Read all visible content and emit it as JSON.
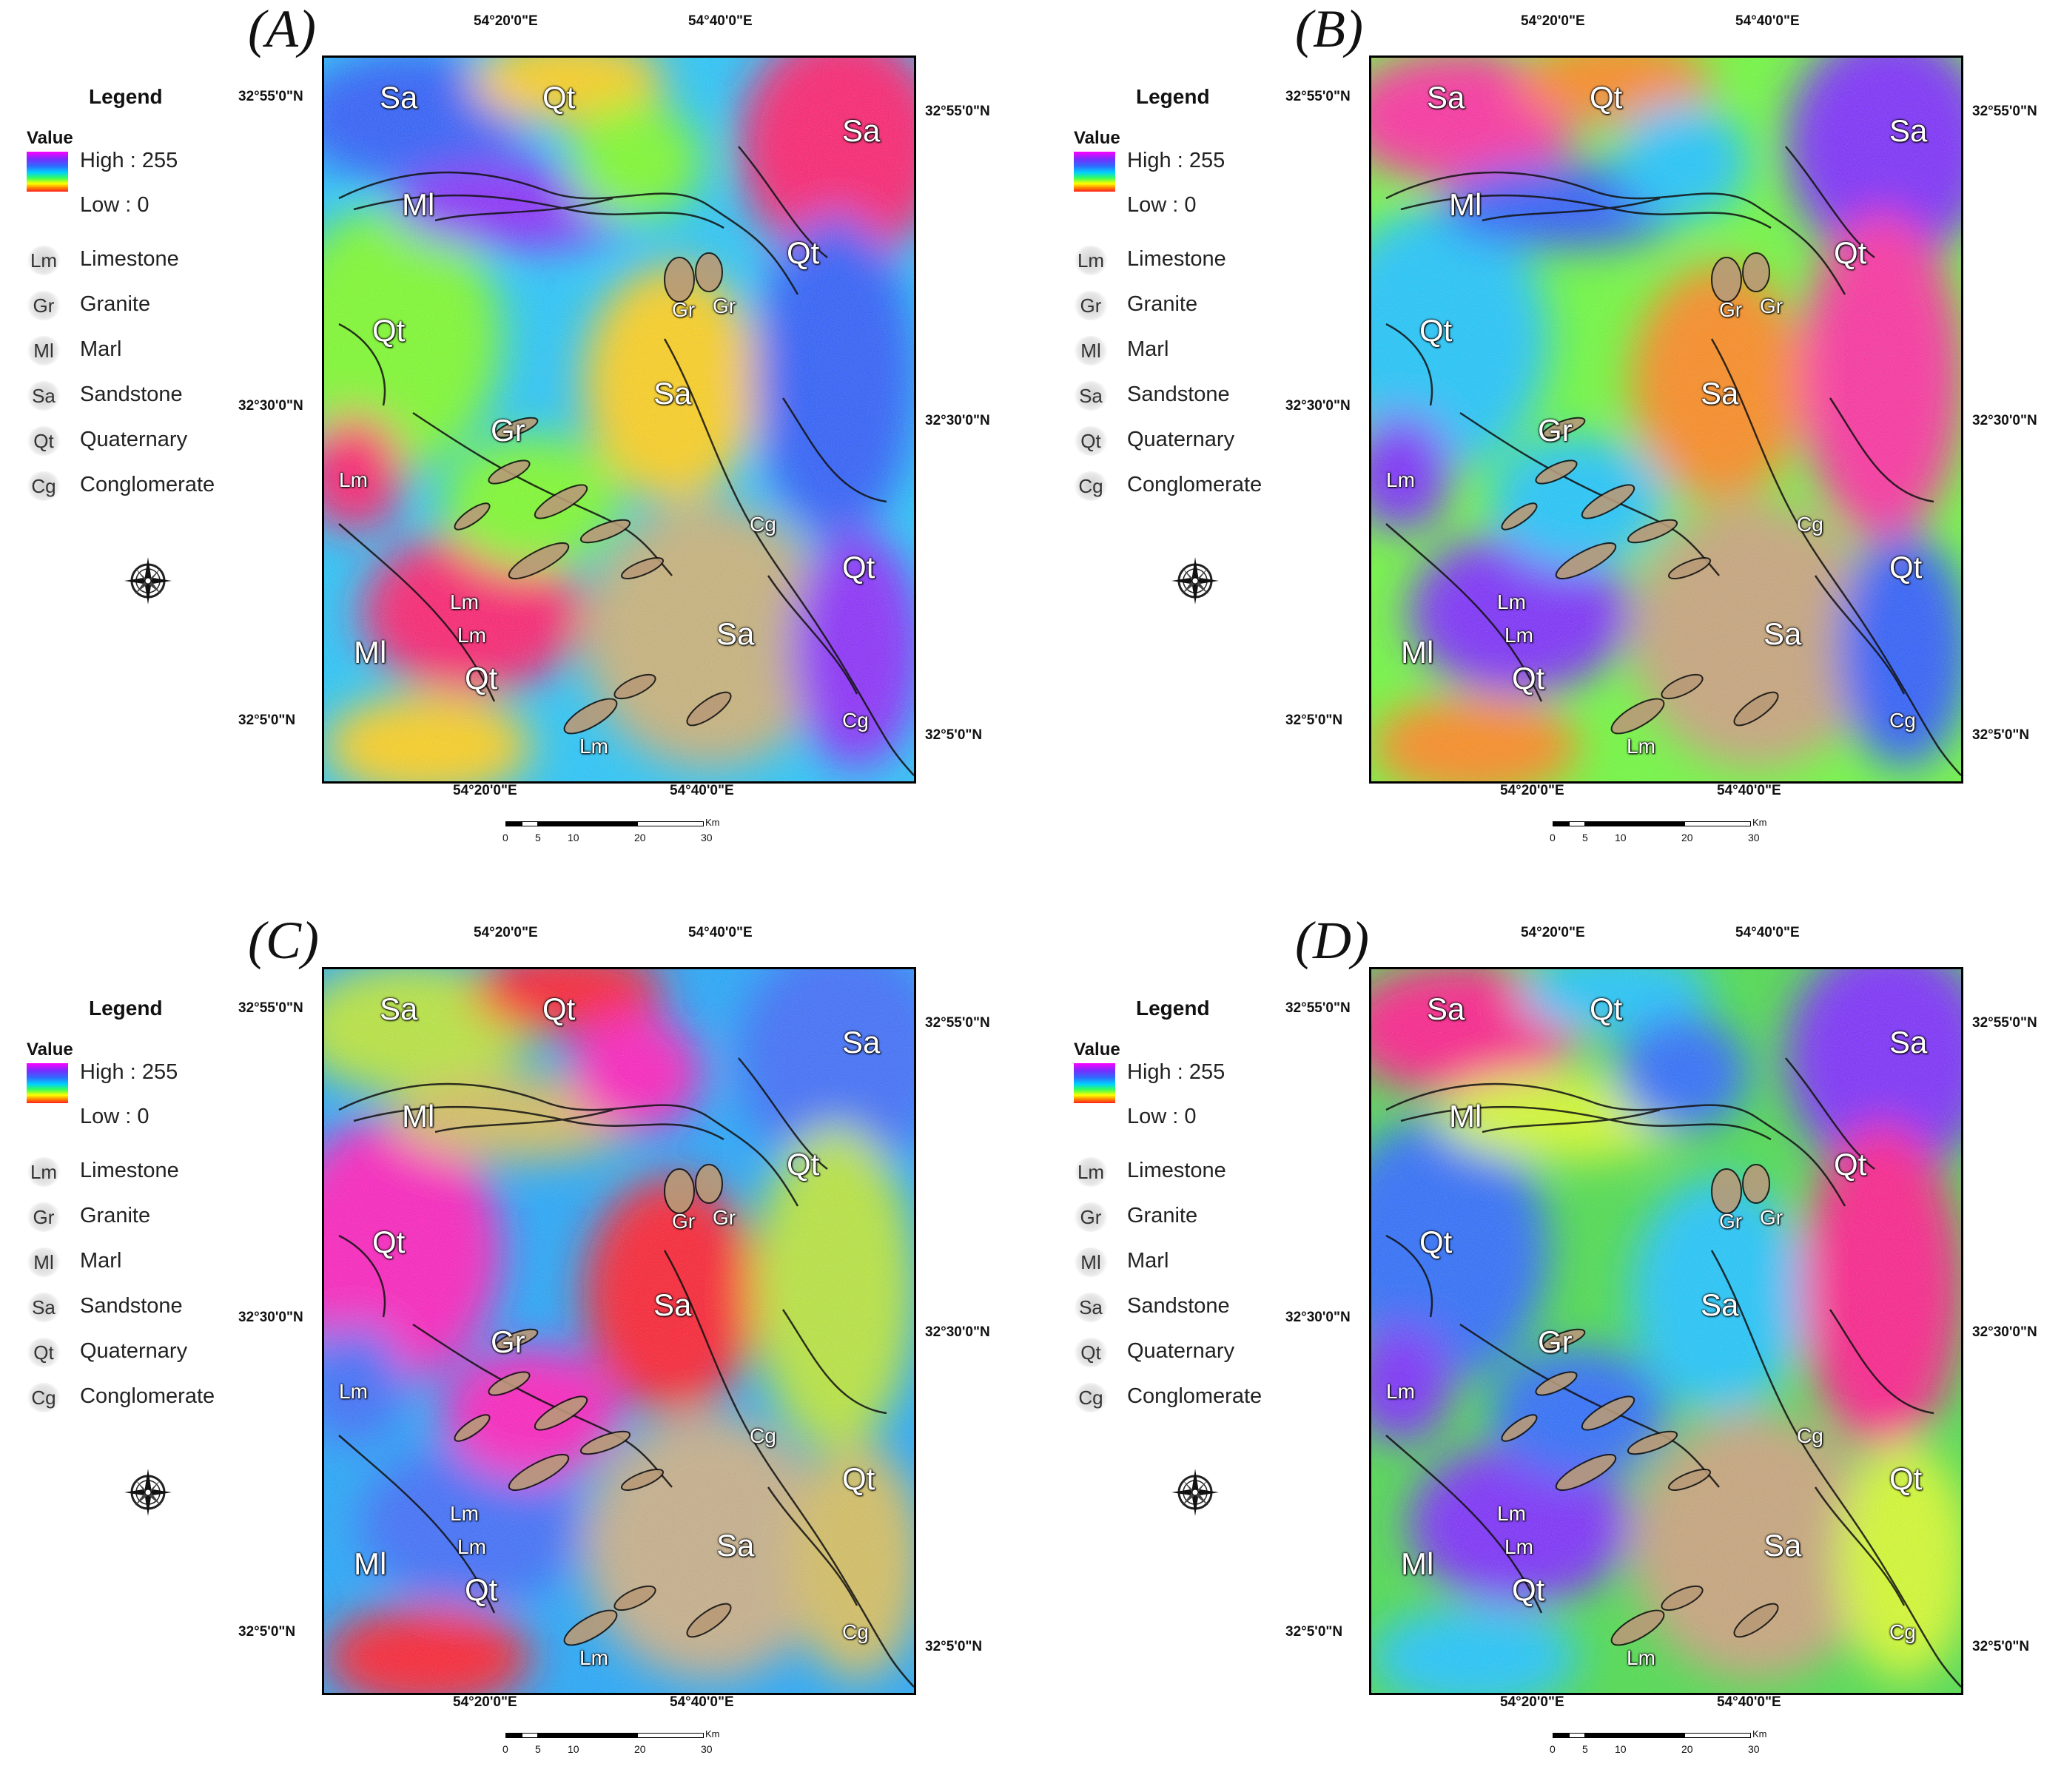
{
  "legend": {
    "title": "Legend",
    "value_title": "Value",
    "high": "High : 255",
    "low": "Low : 0",
    "items": [
      {
        "code": "Lm",
        "name": "Limestone"
      },
      {
        "code": "Gr",
        "name": "Granite"
      },
      {
        "code": "Ml",
        "name": "Marl"
      },
      {
        "code": "Sa",
        "name": "Sandstone"
      },
      {
        "code": "Qt",
        "name": "Quaternary"
      },
      {
        "code": "Cg",
        "name": "Conglomerate"
      }
    ]
  },
  "coords": {
    "top_lon_1": "54°20'0\"E",
    "top_lon_2": "54°40'0\"E",
    "bottom_lon_1": "54°20'0\"E",
    "bottom_lon_2": "54°40'0\"E",
    "left_lat_1": "32°55'0\"N",
    "left_lat_2": "32°30'0\"N",
    "left_lat_3": "32°5'0\"N",
    "right_lat_1": "32°55'0\"N",
    "right_lat_2": "32°30'0\"N",
    "right_lat_3": "32°5'0\"N"
  },
  "scale": {
    "unit": "Km",
    "ticks": [
      "0",
      "5",
      "10",
      "20",
      "30"
    ]
  },
  "panels": [
    {
      "id": "A",
      "label": "(A)",
      "colors": {
        "base": "#22c8ff",
        "c1": "#7dff2a",
        "c2": "#2a5cff",
        "c3": "#ffd21a",
        "c4": "#ff1e6e",
        "c5": "#8a2bff",
        "c6": "#c9b37a"
      }
    },
    {
      "id": "B",
      "label": "(B)",
      "colors": {
        "base": "#6dff3a",
        "c1": "#1ec8ff",
        "c2": "#ff2ea0",
        "c3": "#ff8a1a",
        "c4": "#7a2bff",
        "c5": "#2a5cff",
        "c6": "#c9a57a"
      }
    },
    {
      "id": "C",
      "label": "(C)",
      "colors": {
        "base": "#1ea8ff",
        "c1": "#ff1ec0",
        "c2": "#b9e83a",
        "c3": "#ff1e2e",
        "c4": "#3a6cff",
        "c5": "#d6c060",
        "c6": "#c8b08a"
      }
    },
    {
      "id": "D",
      "label": "(D)",
      "colors": {
        "base": "#4ae04a",
        "c1": "#2a6cff",
        "c2": "#ff1e8a",
        "c3": "#1ec8ff",
        "c4": "#7a2bff",
        "c5": "#d6ff2a",
        "c6": "#c9a57a"
      }
    }
  ],
  "map_labels": [
    {
      "code": "Sa"
    },
    {
      "code": "Qt"
    },
    {
      "code": "Sa"
    },
    {
      "code": "Ml"
    },
    {
      "code": "Qt"
    },
    {
      "code": "Qt"
    },
    {
      "code": "Gr"
    },
    {
      "code": "Gr"
    },
    {
      "code": "Sa"
    },
    {
      "code": "Gr"
    },
    {
      "code": "Lm"
    },
    {
      "code": "Cg"
    },
    {
      "code": "Qt"
    },
    {
      "code": "Lm"
    },
    {
      "code": "Sa"
    },
    {
      "code": "Ml"
    },
    {
      "code": "Lm"
    },
    {
      "code": "Qt"
    },
    {
      "code": "Cg"
    },
    {
      "code": "Lm"
    }
  ]
}
